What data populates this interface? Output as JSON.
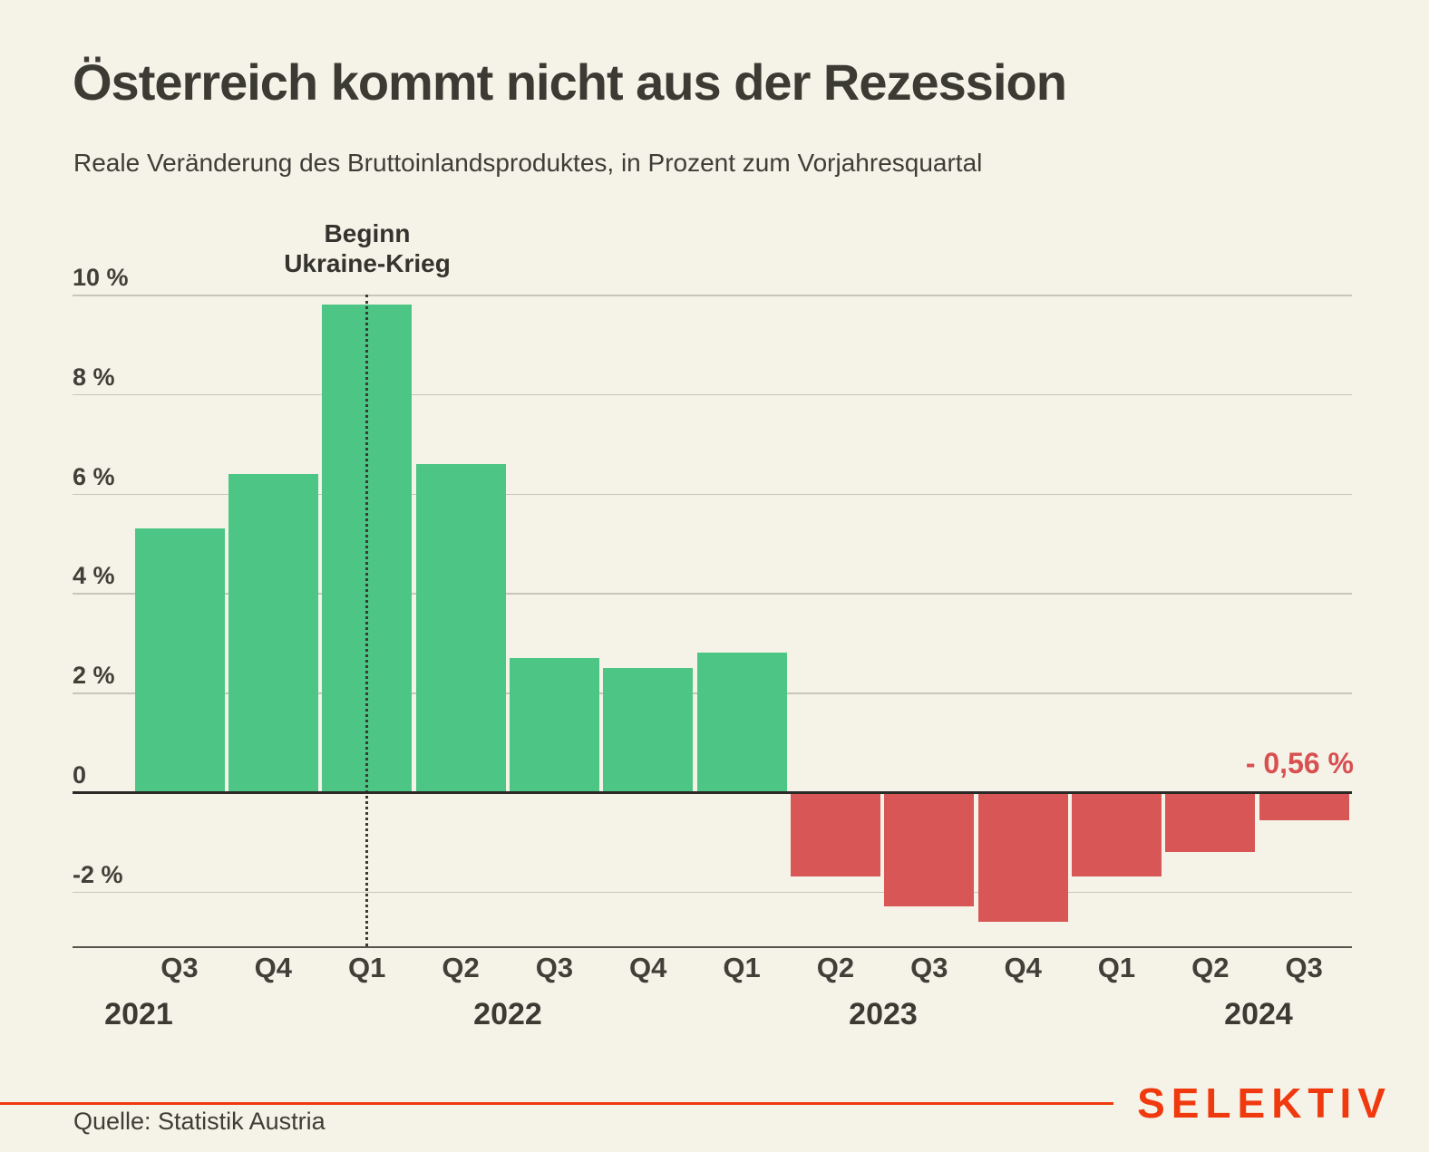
{
  "header": {
    "title": "Österreich kommt nicht aus der Rezession",
    "subtitle": "Reale Veränderung des Bruttoinlandsproduktes, in Prozent zum Vorjahresquartal"
  },
  "annotation": {
    "lines": [
      "Beginn",
      "Ukraine-Krieg"
    ]
  },
  "footer": {
    "source": "Quelle: Statistik Austria",
    "brand": "SELEKTIV"
  },
  "colors": {
    "background": "#f5f3e8",
    "positive": "#4dc685",
    "negative": "#d85656",
    "accent": "#f0390f",
    "ink": "#3b3a33",
    "grid": "#c8c6ba"
  },
  "chart_data": {
    "type": "bar",
    "title": "Österreich kommt nicht aus der Rezession",
    "subtitle": "Reale Veränderung des Bruttoinlandsproduktes, in Prozent zum Vorjahresquartal",
    "categories": [
      "Q3",
      "Q4",
      "Q1",
      "Q2",
      "Q3",
      "Q4",
      "Q1",
      "Q2",
      "Q3",
      "Q4",
      "Q1",
      "Q2",
      "Q3"
    ],
    "years": [
      "2021",
      "2022",
      "2023",
      "2024"
    ],
    "year_of_bar": [
      "2021",
      "2021",
      "2022",
      "2022",
      "2022",
      "2022",
      "2023",
      "2023",
      "2023",
      "2023",
      "2024",
      "2024",
      "2024"
    ],
    "values": [
      5.3,
      6.4,
      9.8,
      6.6,
      2.7,
      2.5,
      2.8,
      -1.7,
      -2.3,
      -2.6,
      -1.7,
      -1.2,
      -0.56
    ],
    "last_point_label": "- 0,56 %",
    "annotation_text": "Beginn Ukraine-Krieg",
    "annotation_bar_index": 2,
    "xlabel": "",
    "ylabel": "Prozent zum Vorjahresquartal",
    "ylim": [
      -3.1,
      10
    ],
    "ytick_values": [
      10,
      8,
      6,
      4,
      2,
      0,
      -2
    ],
    "ytick_labels": [
      "10 %",
      "8 %",
      "6 %",
      "4 %",
      "2 %",
      "0",
      "-2 %"
    ],
    "grid": "horizontal",
    "legend": "none",
    "source": "Quelle: Statistik Austria"
  }
}
